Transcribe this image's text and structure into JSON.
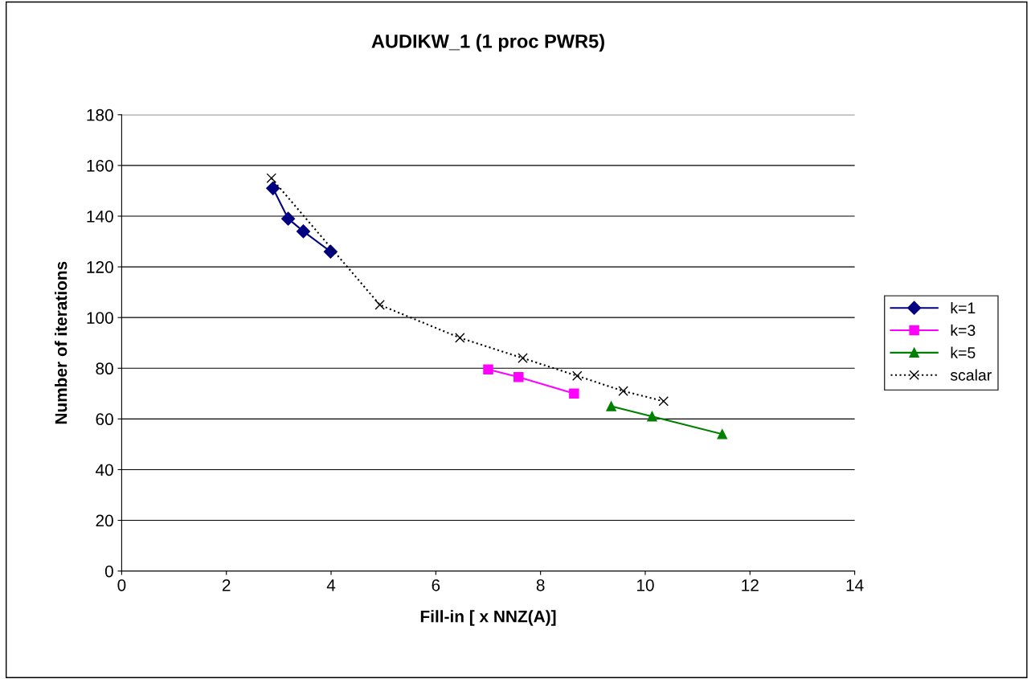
{
  "chart_data": {
    "type": "line",
    "title": "AUDIKW_1 (1 proc PWR5)",
    "xlabel": "Fill-in [ x NNZ(A)]",
    "ylabel": "Number of iterations",
    "xlim": [
      0,
      14
    ],
    "xticks": [
      0,
      2,
      4,
      6,
      8,
      10,
      12,
      14
    ],
    "ylim": [
      0,
      180
    ],
    "yticks": [
      0,
      20,
      40,
      60,
      80,
      100,
      120,
      140,
      160,
      180
    ],
    "grid": "y",
    "legend": "right",
    "series": [
      {
        "name": "k=1",
        "color": "#000080",
        "marker": "diamond",
        "line_style": "solid",
        "x": [
          2.89,
          3.18,
          3.47,
          3.99
        ],
        "values": [
          151,
          139,
          134,
          126
        ]
      },
      {
        "name": "k=3",
        "color": "#ff00ff",
        "marker": "square",
        "line_style": "solid",
        "x": [
          7.0,
          7.58,
          8.64
        ],
        "values": [
          79.5,
          76.5,
          70
        ]
      },
      {
        "name": "k=5",
        "color": "#008000",
        "marker": "triangle",
        "line_style": "solid",
        "x": [
          9.35,
          10.13,
          11.47
        ],
        "values": [
          65,
          61,
          54
        ]
      },
      {
        "name": "scalar",
        "color": "#000000",
        "marker": "cross",
        "line_style": "dotted",
        "x": [
          2.86,
          4.93,
          6.46,
          7.66,
          8.7,
          9.58,
          10.35
        ],
        "values": [
          155,
          105,
          92,
          84,
          77,
          71,
          67
        ]
      }
    ]
  }
}
